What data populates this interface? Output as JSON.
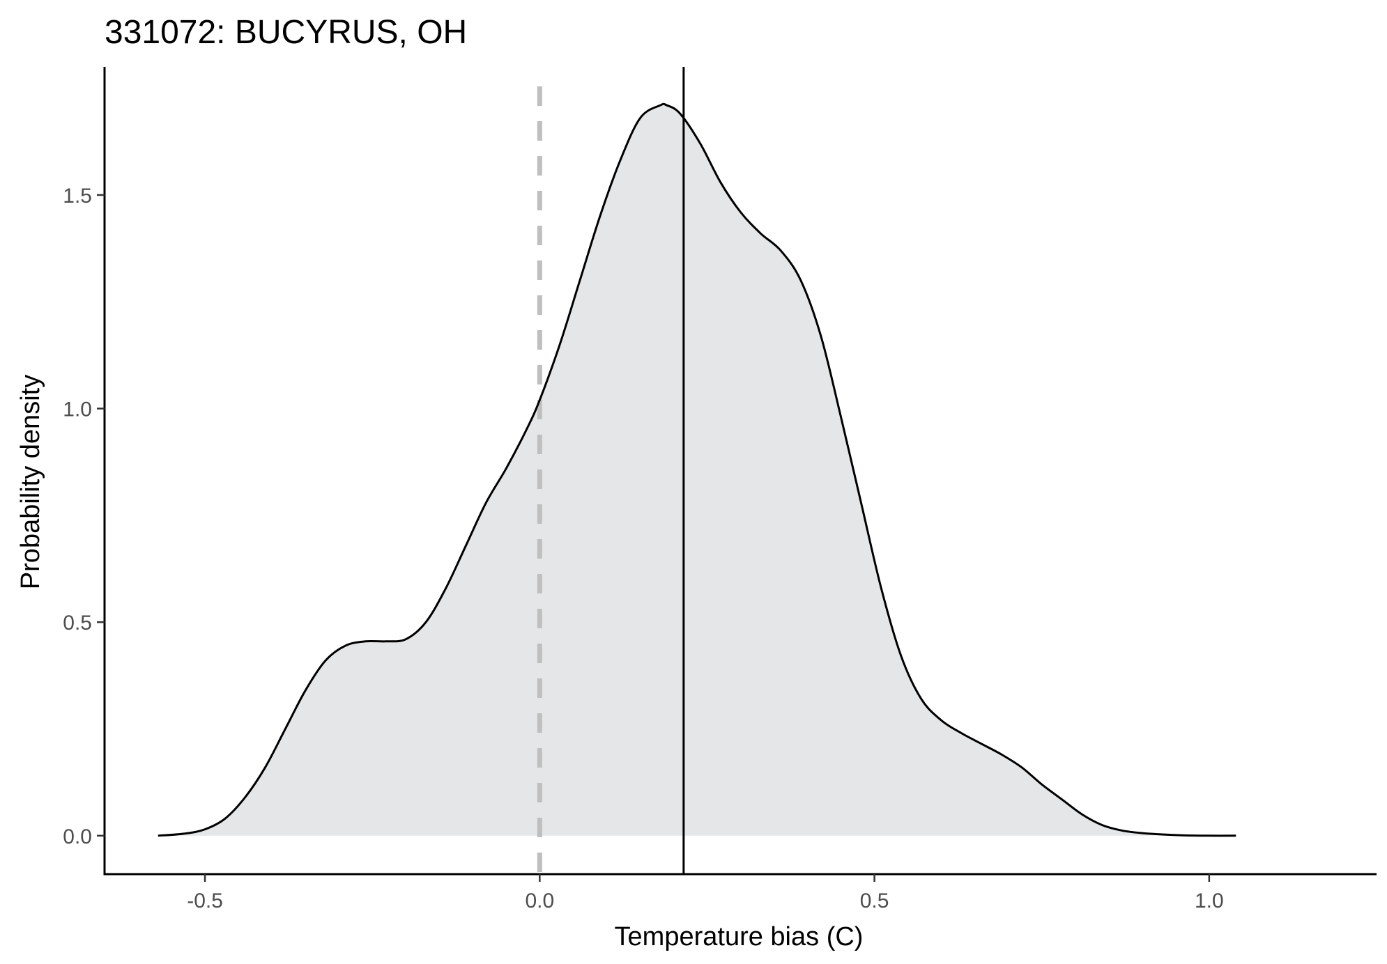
{
  "chart_data": {
    "type": "area",
    "title": "331072: BUCYRUS, OH",
    "xlabel": "Temperature bias (C)",
    "ylabel": "Probability density",
    "xlim": [
      -0.65,
      1.25
    ],
    "ylim": [
      -0.09,
      1.8
    ],
    "x_ticks": [
      -0.5,
      0.0,
      0.5,
      1.0
    ],
    "x_tick_labels": [
      "-0.5",
      "0.0",
      "0.5",
      "1.0"
    ],
    "y_ticks": [
      0.0,
      0.5,
      1.0,
      1.5
    ],
    "y_tick_labels": [
      "0.0",
      "0.5",
      "1.0",
      "1.5"
    ],
    "grid": false,
    "fill_color": "#e5e6e8",
    "line_color": "#000000",
    "reference_line": {
      "x": 0.0,
      "style": "dashed",
      "color": "#bfbfbf"
    },
    "mean_line": {
      "x": 0.215,
      "style": "solid",
      "color": "#000000"
    },
    "density": {
      "x": [
        -0.57,
        -0.53,
        -0.5,
        -0.47,
        -0.44,
        -0.41,
        -0.38,
        -0.35,
        -0.32,
        -0.29,
        -0.26,
        -0.23,
        -0.2,
        -0.17,
        -0.14,
        -0.11,
        -0.08,
        -0.05,
        -0.02,
        0.0,
        0.03,
        0.06,
        0.09,
        0.12,
        0.15,
        0.18,
        0.19,
        0.21,
        0.24,
        0.27,
        0.3,
        0.33,
        0.36,
        0.39,
        0.42,
        0.45,
        0.48,
        0.51,
        0.54,
        0.57,
        0.6,
        0.63,
        0.66,
        0.69,
        0.72,
        0.75,
        0.78,
        0.81,
        0.84,
        0.87,
        0.9,
        0.93,
        0.96,
        1.0,
        1.04
      ],
      "y": [
        0.0,
        0.005,
        0.015,
        0.04,
        0.09,
        0.16,
        0.25,
        0.34,
        0.41,
        0.445,
        0.455,
        0.455,
        0.46,
        0.5,
        0.58,
        0.68,
        0.78,
        0.86,
        0.95,
        1.02,
        1.15,
        1.3,
        1.45,
        1.58,
        1.68,
        1.71,
        1.71,
        1.69,
        1.62,
        1.53,
        1.46,
        1.41,
        1.37,
        1.3,
        1.17,
        0.98,
        0.78,
        0.58,
        0.42,
        0.32,
        0.27,
        0.24,
        0.215,
        0.19,
        0.16,
        0.12,
        0.085,
        0.05,
        0.025,
        0.012,
        0.006,
        0.003,
        0.001,
        0.0,
        0.0
      ]
    }
  }
}
